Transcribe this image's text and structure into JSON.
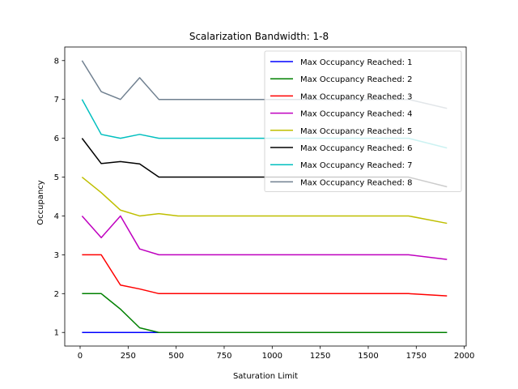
{
  "chart_data": {
    "type": "line",
    "title": "Scalarization Bandwidth: 1-8",
    "xlabel": "Saturation Limit",
    "ylabel": "Occupancy",
    "xlim": [
      -80,
      2010
    ],
    "ylim": [
      0.65,
      8.35
    ],
    "xticks": [
      0,
      250,
      500,
      750,
      1000,
      1250,
      1500,
      1750,
      2000
    ],
    "yticks": [
      1,
      2,
      3,
      4,
      5,
      6,
      7,
      8
    ],
    "legend_position": "top-right",
    "grid": false,
    "series": [
      {
        "name": "Max Occupancy Reached: 1",
        "color": "#0000ff",
        "x": [
          10,
          110,
          210,
          310,
          410,
          510,
          1710,
          1910
        ],
        "y": [
          1,
          1,
          1,
          1,
          1,
          1,
          1,
          1
        ]
      },
      {
        "name": "Max Occupancy Reached: 2",
        "color": "#008000",
        "x": [
          10,
          110,
          210,
          310,
          410,
          510,
          1710,
          1910
        ],
        "y": [
          2,
          2,
          1.6,
          1.12,
          1,
          1,
          1,
          1
        ]
      },
      {
        "name": "Max Occupancy Reached: 3",
        "color": "#ff0000",
        "x": [
          10,
          110,
          210,
          310,
          410,
          510,
          1710,
          1910
        ],
        "y": [
          3,
          3,
          2.22,
          2.12,
          2,
          2,
          2,
          1.94
        ]
      },
      {
        "name": "Max Occupancy Reached: 4",
        "color": "#bf00bf",
        "x": [
          10,
          110,
          210,
          310,
          410,
          510,
          1710,
          1910
        ],
        "y": [
          4,
          3.44,
          4,
          3.15,
          3,
          3,
          3,
          2.88
        ]
      },
      {
        "name": "Max Occupancy Reached: 5",
        "color": "#bfbf00",
        "x": [
          10,
          110,
          210,
          310,
          410,
          510,
          1710,
          1910
        ],
        "y": [
          5,
          4.6,
          4.15,
          4,
          4.06,
          4,
          4,
          3.81
        ]
      },
      {
        "name": "Max Occupancy Reached: 6",
        "color": "#000000",
        "x": [
          10,
          110,
          210,
          310,
          410,
          510,
          1710,
          1910
        ],
        "y": [
          6,
          5.35,
          5.4,
          5.34,
          5,
          5,
          5,
          4.75
        ]
      },
      {
        "name": "Max Occupancy Reached: 7",
        "color": "#00bfbf",
        "x": [
          10,
          110,
          210,
          310,
          410,
          510,
          1710,
          1910
        ],
        "y": [
          7,
          6.1,
          6,
          6.1,
          6,
          6,
          6,
          5.75
        ]
      },
      {
        "name": "Max Occupancy Reached: 8",
        "color": "#708090",
        "x": [
          10,
          110,
          210,
          310,
          410,
          510,
          1710,
          1910
        ],
        "y": [
          8,
          7.2,
          7,
          7.56,
          7,
          7,
          7,
          6.77
        ]
      }
    ]
  }
}
